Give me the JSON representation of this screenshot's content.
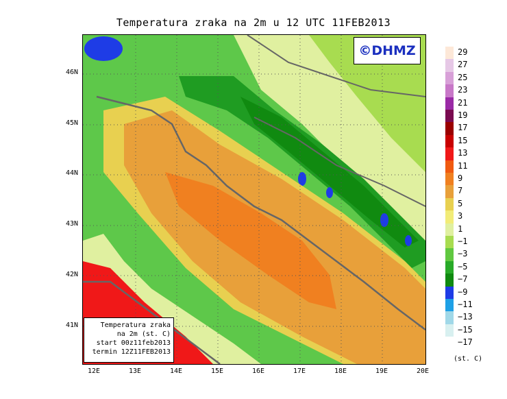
{
  "title": "Temperatura zraka na 2m u 12 UTC 11FEB2013",
  "logo": "©DHMZ",
  "info": {
    "line1": "Temperatura zraka",
    "line2": "na 2m (st. C)",
    "line3": "start 00z11feb2013",
    "line4": "termin 12Z11FEB2013"
  },
  "lat_labels": [
    "46N",
    "45N",
    "44N",
    "43N",
    "42N",
    "41N"
  ],
  "lon_labels": [
    "12E",
    "13E",
    "14E",
    "15E",
    "16E",
    "17E",
    "18E",
    "19E",
    "20E"
  ],
  "legend": {
    "labels": [
      "29",
      "27",
      "25",
      "23",
      "21",
      "19",
      "17",
      "15",
      "13",
      "11",
      "9",
      "7",
      "5",
      "3",
      "1",
      "−1",
      "−3",
      "−5",
      "−7",
      "−9",
      "−11",
      "−13",
      "−15",
      "−17"
    ],
    "colors": [
      "#fde8d8",
      "#e6c8e6",
      "#d8a0d8",
      "#c878c8",
      "#9a2aa6",
      "#7a0a50",
      "#9a0000",
      "#c80000",
      "#f01818",
      "#f05a10",
      "#f08020",
      "#e8a03a",
      "#e8d050",
      "#f2ec78",
      "#e0f0a0",
      "#a8dc50",
      "#60c840",
      "#28aa28",
      "#108a10",
      "#1e3ce6",
      "#1ea0e6",
      "#a0d8e8",
      "#d8f0f0",
      "#ffffff"
    ],
    "unit": "(st. C)"
  }
}
